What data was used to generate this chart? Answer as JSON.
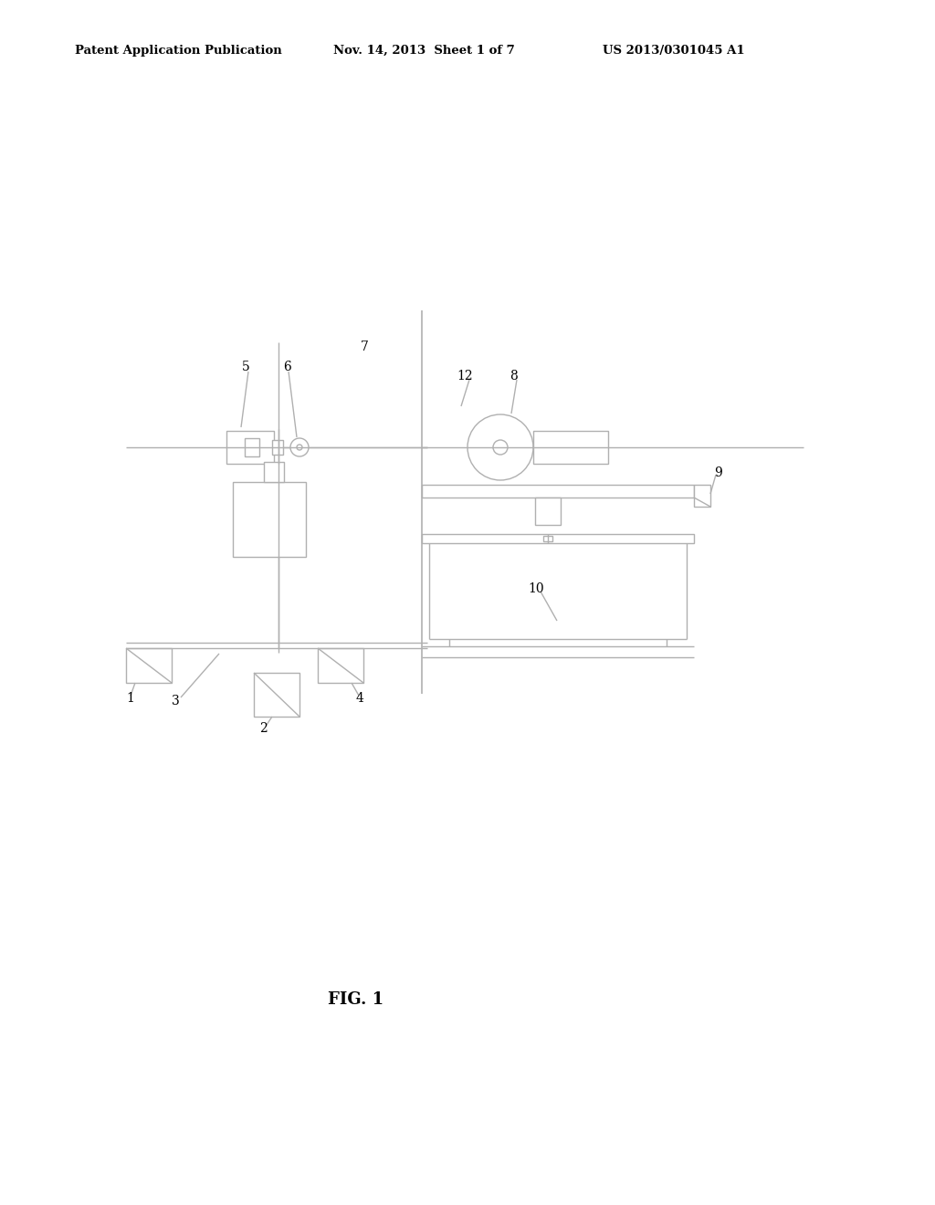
{
  "bg_color": "#ffffff",
  "line_color": "#b0b0b0",
  "text_color": "#000000",
  "header_left": "Patent Application Publication",
  "header_mid": "Nov. 14, 2013  Sheet 1 of 7",
  "header_right": "US 2013/0301045 A1",
  "fig_label": "FIG. 1",
  "lw": 1.0
}
